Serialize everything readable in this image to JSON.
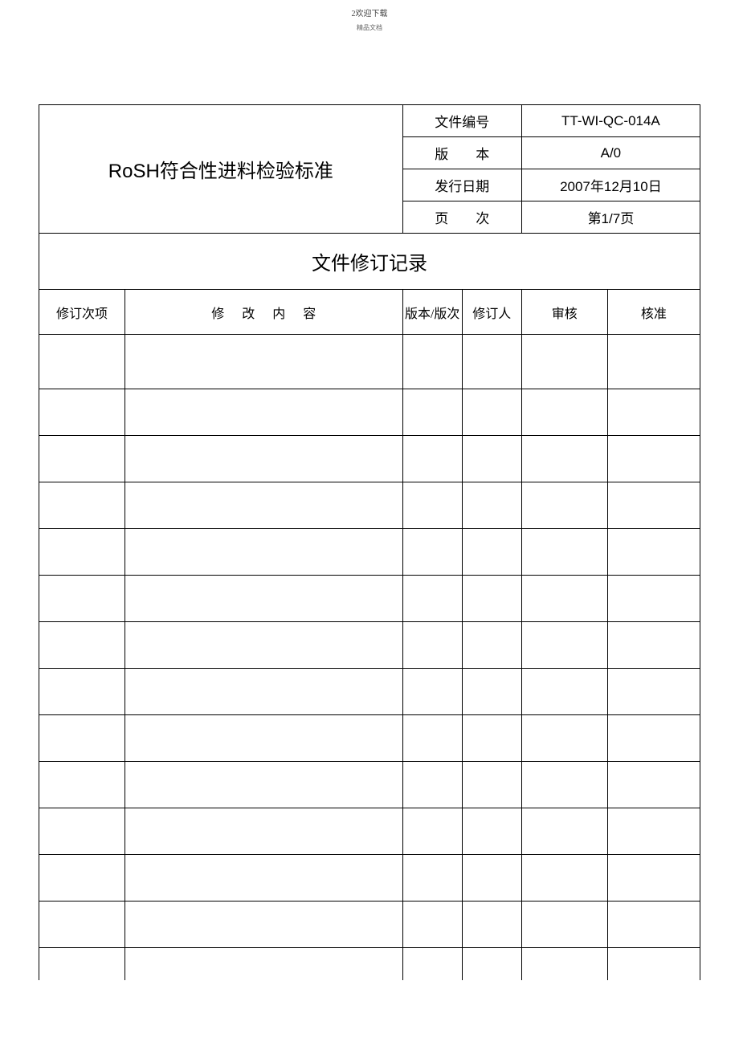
{
  "page_header": {
    "line1": "2欢迎下载",
    "line2": "精品文档"
  },
  "doc_title": "RoSH符合性进料检验标准",
  "meta": {
    "doc_no_label": "文件编号",
    "doc_no_value": "TT-WI-QC-014A",
    "version_label": "版　　本",
    "version_value": "A/0",
    "issue_date_label": "发行日期",
    "issue_date_value": "2007年12月10日",
    "page_label": "页　　次",
    "page_value": "第1/7页"
  },
  "section_title": "文件修订记录",
  "rev_columns": {
    "item": "修订次项",
    "content": "修改内容",
    "version": "版本/版次",
    "reviser": "修订人",
    "audit": "审核",
    "approve": "核准"
  },
  "rev_rows": [
    {
      "item": "",
      "content": "",
      "version": "",
      "reviser": "",
      "audit": "",
      "approve": ""
    },
    {
      "item": "",
      "content": "",
      "version": "",
      "reviser": "",
      "audit": "",
      "approve": ""
    },
    {
      "item": "",
      "content": "",
      "version": "",
      "reviser": "",
      "audit": "",
      "approve": ""
    },
    {
      "item": "",
      "content": "",
      "version": "",
      "reviser": "",
      "audit": "",
      "approve": ""
    },
    {
      "item": "",
      "content": "",
      "version": "",
      "reviser": "",
      "audit": "",
      "approve": ""
    },
    {
      "item": "",
      "content": "",
      "version": "",
      "reviser": "",
      "audit": "",
      "approve": ""
    },
    {
      "item": "",
      "content": "",
      "version": "",
      "reviser": "",
      "audit": "",
      "approve": ""
    },
    {
      "item": "",
      "content": "",
      "version": "",
      "reviser": "",
      "audit": "",
      "approve": ""
    },
    {
      "item": "",
      "content": "",
      "version": "",
      "reviser": "",
      "audit": "",
      "approve": ""
    },
    {
      "item": "",
      "content": "",
      "version": "",
      "reviser": "",
      "audit": "",
      "approve": ""
    },
    {
      "item": "",
      "content": "",
      "version": "",
      "reviser": "",
      "audit": "",
      "approve": ""
    },
    {
      "item": "",
      "content": "",
      "version": "",
      "reviser": "",
      "audit": "",
      "approve": ""
    },
    {
      "item": "",
      "content": "",
      "version": "",
      "reviser": "",
      "audit": "",
      "approve": ""
    },
    {
      "item": "",
      "content": "",
      "version": "",
      "reviser": "",
      "audit": "",
      "approve": ""
    }
  ],
  "style": {
    "border_color": "#000000",
    "background": "#ffffff",
    "title_fontsize": 24,
    "meta_fontsize": 17,
    "header_fontsize": 16,
    "col_widths_percent": [
      13,
      42,
      9,
      9,
      13,
      14
    ],
    "header_meta_col_widths_percent": [
      55,
      19,
      26
    ]
  }
}
